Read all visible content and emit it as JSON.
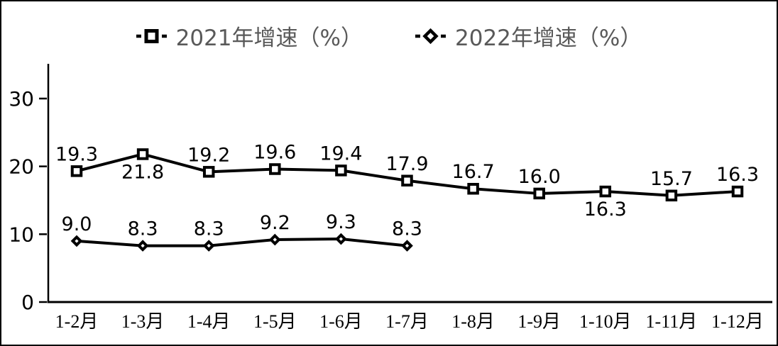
{
  "chart_data": {
    "type": "line",
    "title": "",
    "xlabel": "",
    "ylabel": "",
    "categories": [
      "1-2月",
      "1-3月",
      "1-4月",
      "1-5月",
      "1-6月",
      "1-7月",
      "1-8月",
      "1-9月",
      "1-10月",
      "1-11月",
      "1-12月"
    ],
    "series": [
      {
        "name": "2021年增速（%）",
        "marker": "square",
        "values": [
          19.3,
          21.8,
          19.2,
          19.6,
          19.4,
          17.9,
          16.7,
          16.0,
          16.3,
          15.7,
          16.3
        ],
        "label_positions": [
          "above",
          "below",
          "above",
          "above",
          "above",
          "above",
          "above",
          "above",
          "below",
          "above",
          "above"
        ]
      },
      {
        "name": "2022年增速（%）",
        "marker": "diamond",
        "values": [
          9.0,
          8.3,
          8.3,
          9.2,
          9.3,
          8.3
        ],
        "label_positions": [
          "above",
          "above",
          "above",
          "above",
          "above",
          "above"
        ]
      }
    ],
    "y_ticks": [
      0,
      10,
      20,
      30
    ],
    "ylim": [
      0,
      35
    ],
    "grid": false,
    "legend_position": "top-center",
    "colors": {
      "line": "#000000",
      "marker_fill": "#ffffff",
      "data_label": "#000000",
      "axis": "#000000",
      "tick_label": "#000000",
      "legend_text": "#595959",
      "background": "#ffffff",
      "border": "#000000"
    }
  }
}
